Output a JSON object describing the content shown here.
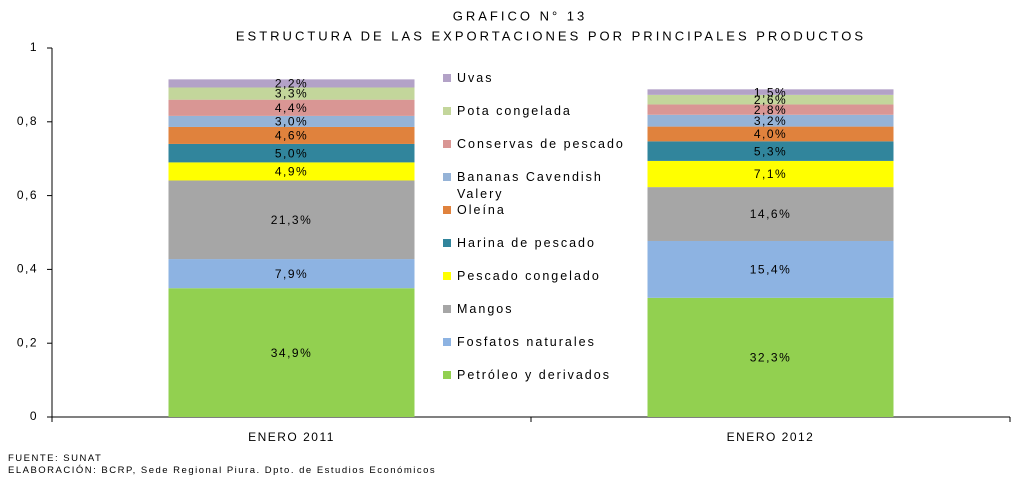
{
  "chart_data": {
    "type": "stacked-bar",
    "title": "GRAFICO N° 13",
    "subtitle": "ESTRUCTURA DE LAS EXPORTACIONES POR PRINCIPALES  PRODUCTOS",
    "categories": [
      "ENERO 2011",
      "ENERO 2012"
    ],
    "series": [
      {
        "name": "Petróleo y derivados",
        "color": "#92d050",
        "values": [
          0.349,
          0.323
        ],
        "value_labels": [
          "34,9%",
          "32,3%"
        ]
      },
      {
        "name": "Fosfatos naturales",
        "color": "#8db3e2",
        "values": [
          0.079,
          0.154
        ],
        "value_labels": [
          "7,9%",
          "15,4%"
        ]
      },
      {
        "name": "Mangos",
        "color": "#a6a6a6",
        "values": [
          0.213,
          0.146
        ],
        "value_labels": [
          "21,3%",
          "14,6%"
        ]
      },
      {
        "name": "Pescado congelado",
        "color": "#ffff00",
        "values": [
          0.049,
          0.071
        ],
        "value_labels": [
          "4,9%",
          "7,1%"
        ]
      },
      {
        "name": "Harina de pescado",
        "color": "#31859c",
        "values": [
          0.05,
          0.053
        ],
        "value_labels": [
          "5,0%",
          "5,3%"
        ]
      },
      {
        "name": "Oleína",
        "color": "#e0823d",
        "values": [
          0.046,
          0.04
        ],
        "value_labels": [
          "4,6%",
          "4,0%"
        ]
      },
      {
        "name": "Bananas Cavendish Valery",
        "color": "#95b3d7",
        "values": [
          0.03,
          0.032
        ],
        "value_labels": [
          "3,0%",
          "3,2%"
        ]
      },
      {
        "name": "Conservas de pescado",
        "color": "#d99694",
        "values": [
          0.044,
          0.028
        ],
        "value_labels": [
          "4,4%",
          "2,8%"
        ]
      },
      {
        "name": "Pota congelada",
        "color": "#c3d69b",
        "values": [
          0.033,
          0.026
        ],
        "value_labels": [
          "3,3%",
          "2,6%"
        ]
      },
      {
        "name": "Uvas",
        "color": "#b3a2c7",
        "values": [
          0.022,
          0.015
        ],
        "value_labels": [
          "2,2%",
          "1,5%"
        ]
      }
    ],
    "ylim": [
      0,
      1
    ],
    "yticks": [
      0,
      {
        "value": 0.2,
        "label": "0,2"
      },
      {
        "value": 0.4,
        "label": "0,4"
      },
      {
        "value": 0.6,
        "label": "0,6"
      },
      {
        "value": 0.8,
        "label": "0,8"
      },
      1
    ],
    "legend": "right",
    "notes": [
      "FUENTE: SUNAT",
      "ELABORACIÓN: BCRP, Sede Regional Piura. Dpto. de Estudios Económicos"
    ]
  }
}
